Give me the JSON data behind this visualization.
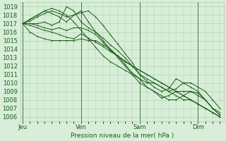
{
  "title": "Pression niveau de la mer( hPa )",
  "ylim": [
    1005.5,
    1019.5
  ],
  "yticks": [
    1006,
    1007,
    1008,
    1009,
    1010,
    1011,
    1012,
    1013,
    1014,
    1015,
    1016,
    1017,
    1018,
    1019
  ],
  "xtick_labels": [
    "Jeu",
    "Ven",
    "Sam",
    "Dim"
  ],
  "xtick_positions": [
    0,
    32,
    64,
    96
  ],
  "xlim": [
    -1,
    110
  ],
  "bg_color": "#d8eed8",
  "grid_color": "#aacfaa",
  "line_color": "#1a5c1a",
  "vline_color": "#336633",
  "lines": [
    [
      0,
      1017.0,
      4,
      1016.8,
      8,
      1016.5,
      12,
      1016.2,
      16,
      1016.0,
      20,
      1015.7,
      24,
      1015.4,
      28,
      1015.2,
      32,
      1015.8,
      36,
      1015.3,
      40,
      1014.8,
      44,
      1014.3,
      48,
      1013.7,
      52,
      1013.2,
      56,
      1012.6,
      60,
      1012.0,
      64,
      1011.5,
      68,
      1011.0,
      72,
      1010.5,
      76,
      1010.0,
      80,
      1009.5,
      84,
      1009.0,
      88,
      1008.5,
      92,
      1008.0,
      96,
      1007.5,
      100,
      1007.0,
      104,
      1006.5,
      108,
      1006.0
    ],
    [
      0,
      1017.0,
      4,
      1017.3,
      8,
      1017.8,
      12,
      1018.2,
      16,
      1018.5,
      20,
      1018.2,
      24,
      1017.8,
      28,
      1018.0,
      32,
      1018.3,
      36,
      1018.5,
      40,
      1017.8,
      44,
      1016.8,
      48,
      1015.7,
      52,
      1014.6,
      56,
      1013.5,
      60,
      1012.4,
      64,
      1011.0,
      68,
      1010.2,
      72,
      1009.5,
      76,
      1009.0,
      80,
      1009.3,
      84,
      1010.5,
      88,
      1010.0,
      92,
      1009.5,
      96,
      1009.0,
      100,
      1008.0,
      104,
      1007.0,
      108,
      1006.2
    ],
    [
      0,
      1017.0,
      4,
      1017.0,
      8,
      1016.8,
      12,
      1016.5,
      16,
      1016.3,
      20,
      1016.5,
      24,
      1016.2,
      28,
      1016.5,
      32,
      1016.5,
      36,
      1016.2,
      40,
      1015.7,
      44,
      1014.8,
      48,
      1013.8,
      52,
      1013.2,
      56,
      1012.2,
      60,
      1011.2,
      64,
      1010.5,
      68,
      1010.0,
      72,
      1010.0,
      76,
      1009.5,
      80,
      1009.0,
      84,
      1009.3,
      88,
      1010.0,
      92,
      1010.0,
      96,
      1009.5,
      100,
      1009.0,
      104,
      1008.0,
      108,
      1007.0
    ],
    [
      0,
      1017.0,
      4,
      1017.0,
      8,
      1017.0,
      12,
      1017.2,
      16,
      1016.8,
      20,
      1017.2,
      24,
      1019.0,
      28,
      1018.5,
      32,
      1017.2,
      36,
      1016.5,
      40,
      1016.0,
      44,
      1015.3,
      48,
      1014.5,
      52,
      1013.8,
      56,
      1013.0,
      60,
      1012.0,
      64,
      1011.0,
      68,
      1010.5,
      72,
      1010.0,
      76,
      1009.5,
      80,
      1009.0,
      84,
      1008.5,
      88,
      1008.0,
      92,
      1008.0,
      96,
      1007.5,
      100,
      1007.0,
      104,
      1006.5,
      108,
      1006.0
    ],
    [
      0,
      1017.0,
      4,
      1017.5,
      8,
      1018.0,
      12,
      1018.5,
      16,
      1018.2,
      20,
      1017.8,
      24,
      1017.2,
      28,
      1018.0,
      32,
      1018.5,
      36,
      1017.2,
      40,
      1016.0,
      44,
      1015.0,
      48,
      1014.0,
      52,
      1013.0,
      56,
      1012.0,
      60,
      1011.0,
      64,
      1010.0,
      68,
      1009.5,
      72,
      1009.0,
      76,
      1008.5,
      80,
      1008.0,
      84,
      1008.0,
      88,
      1008.5,
      92,
      1009.0,
      96,
      1008.8,
      100,
      1008.0,
      104,
      1007.0,
      108,
      1006.5
    ],
    [
      0,
      1017.0,
      4,
      1016.0,
      8,
      1015.5,
      12,
      1015.2,
      16,
      1015.0,
      20,
      1015.0,
      24,
      1015.0,
      28,
      1015.0,
      32,
      1015.2,
      36,
      1015.0,
      40,
      1015.0,
      44,
      1014.5,
      48,
      1014.0,
      52,
      1013.2,
      56,
      1012.5,
      60,
      1012.0,
      64,
      1011.5,
      68,
      1011.0,
      72,
      1010.5,
      76,
      1010.0,
      80,
      1009.5,
      84,
      1009.0,
      88,
      1008.5,
      92,
      1008.0,
      96,
      1007.5,
      100,
      1007.0,
      104,
      1006.5,
      108,
      1006.0
    ],
    [
      0,
      1017.0,
      4,
      1017.5,
      8,
      1018.0,
      12,
      1018.5,
      16,
      1018.8,
      20,
      1018.5,
      24,
      1018.0,
      28,
      1017.2,
      32,
      1016.2,
      36,
      1015.2,
      40,
      1014.2,
      44,
      1013.2,
      48,
      1012.5,
      52,
      1012.0,
      56,
      1011.5,
      60,
      1011.0,
      64,
      1010.5,
      68,
      1009.5,
      72,
      1009.0,
      76,
      1008.2,
      80,
      1008.5,
      84,
      1009.0,
      88,
      1009.0,
      92,
      1009.0,
      96,
      1008.5,
      100,
      1008.0,
      104,
      1007.0,
      108,
      1006.2
    ]
  ]
}
